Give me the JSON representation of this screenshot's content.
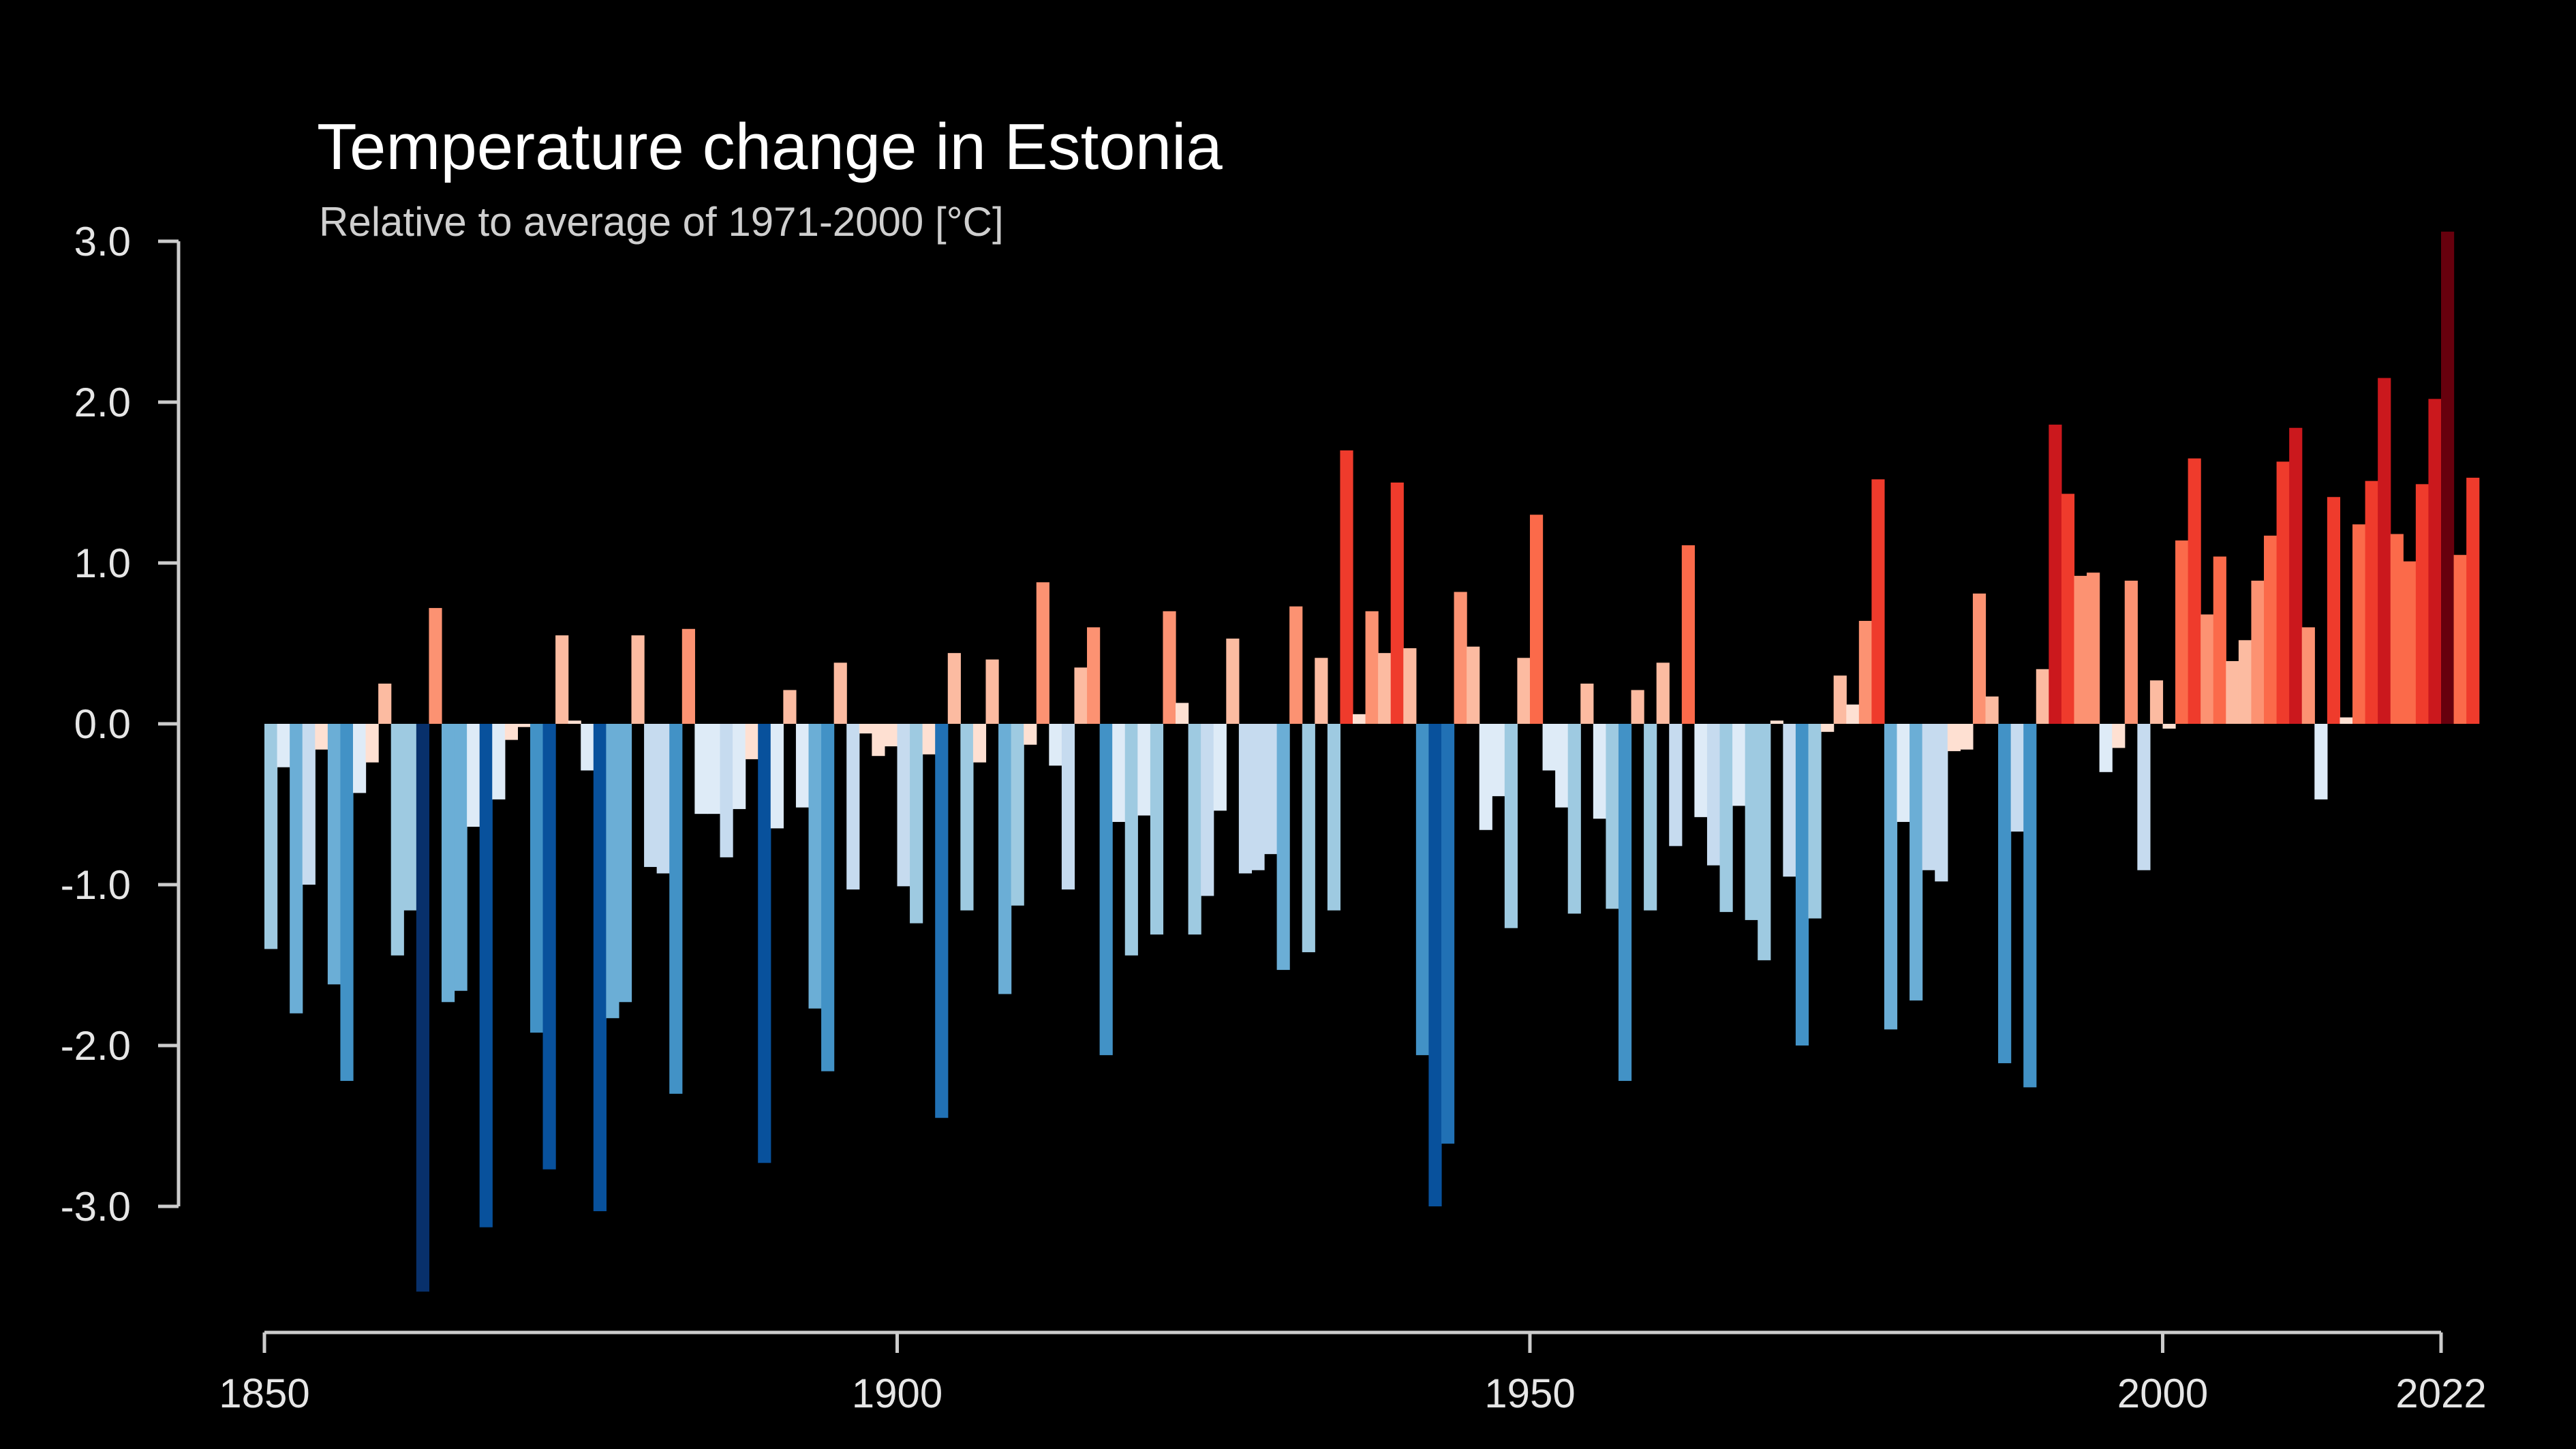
{
  "chart_data": {
    "type": "bar",
    "title": "Temperature change in Estonia",
    "subtitle": "Relative to average of 1971-2000  [°C]",
    "x_start": 1850,
    "x_end": 2022,
    "ylim": [
      -3.55,
      3.05
    ],
    "y_ticks": [
      "3.0",
      "2.0",
      "1.0",
      "0.0",
      "-1.0",
      "-2.0",
      "-3.0"
    ],
    "y_tick_values": [
      3,
      2,
      1,
      0,
      -1,
      -2,
      -3
    ],
    "x_ticks": [
      "1850",
      "1900",
      "1950",
      "2000",
      "2022"
    ],
    "x_tick_values": [
      1850,
      1900,
      1950,
      2000,
      2022
    ],
    "grid": false,
    "legend": "none",
    "background": "#000000",
    "color_scale": [
      "#08306b",
      "#08519c",
      "#2171b5",
      "#4292c6",
      "#6baed6",
      "#9ecae1",
      "#c6dbef",
      "#deebf7",
      "#fee0d2",
      "#fcbba1",
      "#fc9272",
      "#fb6a4a",
      "#ef3b2c",
      "#cb181d",
      "#a50f15",
      "#67000d"
    ],
    "values": [
      -1.4,
      -0.27,
      -1.8,
      -1.0,
      -0.16,
      -1.62,
      -2.22,
      -0.43,
      -0.24,
      0.25,
      -1.44,
      -1.16,
      -3.53,
      0.72,
      -1.73,
      -1.66,
      -0.64,
      -3.13,
      -0.47,
      -0.1,
      -0.02,
      -1.92,
      -2.77,
      0.55,
      0.02,
      -0.29,
      -3.03,
      -1.83,
      -1.73,
      0.55,
      -0.89,
      -0.93,
      -2.3,
      0.59,
      -0.56,
      -0.56,
      -0.83,
      -0.53,
      -0.22,
      -2.73,
      -0.65,
      0.21,
      -0.52,
      -1.77,
      -2.16,
      0.38,
      -1.03,
      -0.06,
      -0.2,
      -0.14,
      -1.01,
      -1.24,
      -0.19,
      -2.45,
      0.44,
      -1.16,
      -0.24,
      0.4,
      -1.68,
      -1.13,
      -0.13,
      0.88,
      -0.26,
      -1.03,
      0.35,
      0.6,
      -2.06,
      -0.61,
      -1.44,
      -0.57,
      -1.31,
      0.7,
      0.13,
      -1.31,
      -1.07,
      -0.54,
      0.53,
      -0.93,
      -0.91,
      -0.81,
      -1.53,
      0.73,
      -1.42,
      0.41,
      -1.16,
      1.7,
      0.06,
      0.7,
      0.44,
      1.5,
      0.47,
      -2.06,
      -3.0,
      -2.61,
      0.82,
      0.48,
      -0.66,
      -0.45,
      -1.27,
      0.41,
      1.3,
      -0.29,
      -0.52,
      -1.18,
      0.25,
      -0.59,
      -1.15,
      -2.22,
      0.21,
      -1.16,
      0.38,
      -0.76,
      1.11,
      -0.58,
      -0.88,
      -1.17,
      -0.51,
      -1.22,
      -1.47,
      0.02,
      -0.95,
      -2.0,
      -1.21,
      -0.05,
      0.3,
      0.12,
      0.64,
      1.52,
      -1.9,
      -0.61,
      -1.72,
      -0.91,
      -0.98,
      -0.17,
      -0.16,
      0.81,
      0.17,
      -2.11,
      -0.67,
      -2.26,
      0.34,
      1.86,
      1.43,
      0.92,
      0.94,
      -0.3,
      -0.15,
      0.89,
      -0.91,
      0.27,
      -0.03,
      1.14,
      1.65,
      0.68,
      1.04,
      0.39,
      0.52,
      0.89,
      1.17,
      1.63,
      1.84,
      0.6,
      -0.47,
      1.41,
      0.04,
      1.24,
      1.51,
      2.15,
      1.18,
      1.01,
      1.49,
      2.02,
      3.06,
      1.05,
      1.53
    ]
  }
}
